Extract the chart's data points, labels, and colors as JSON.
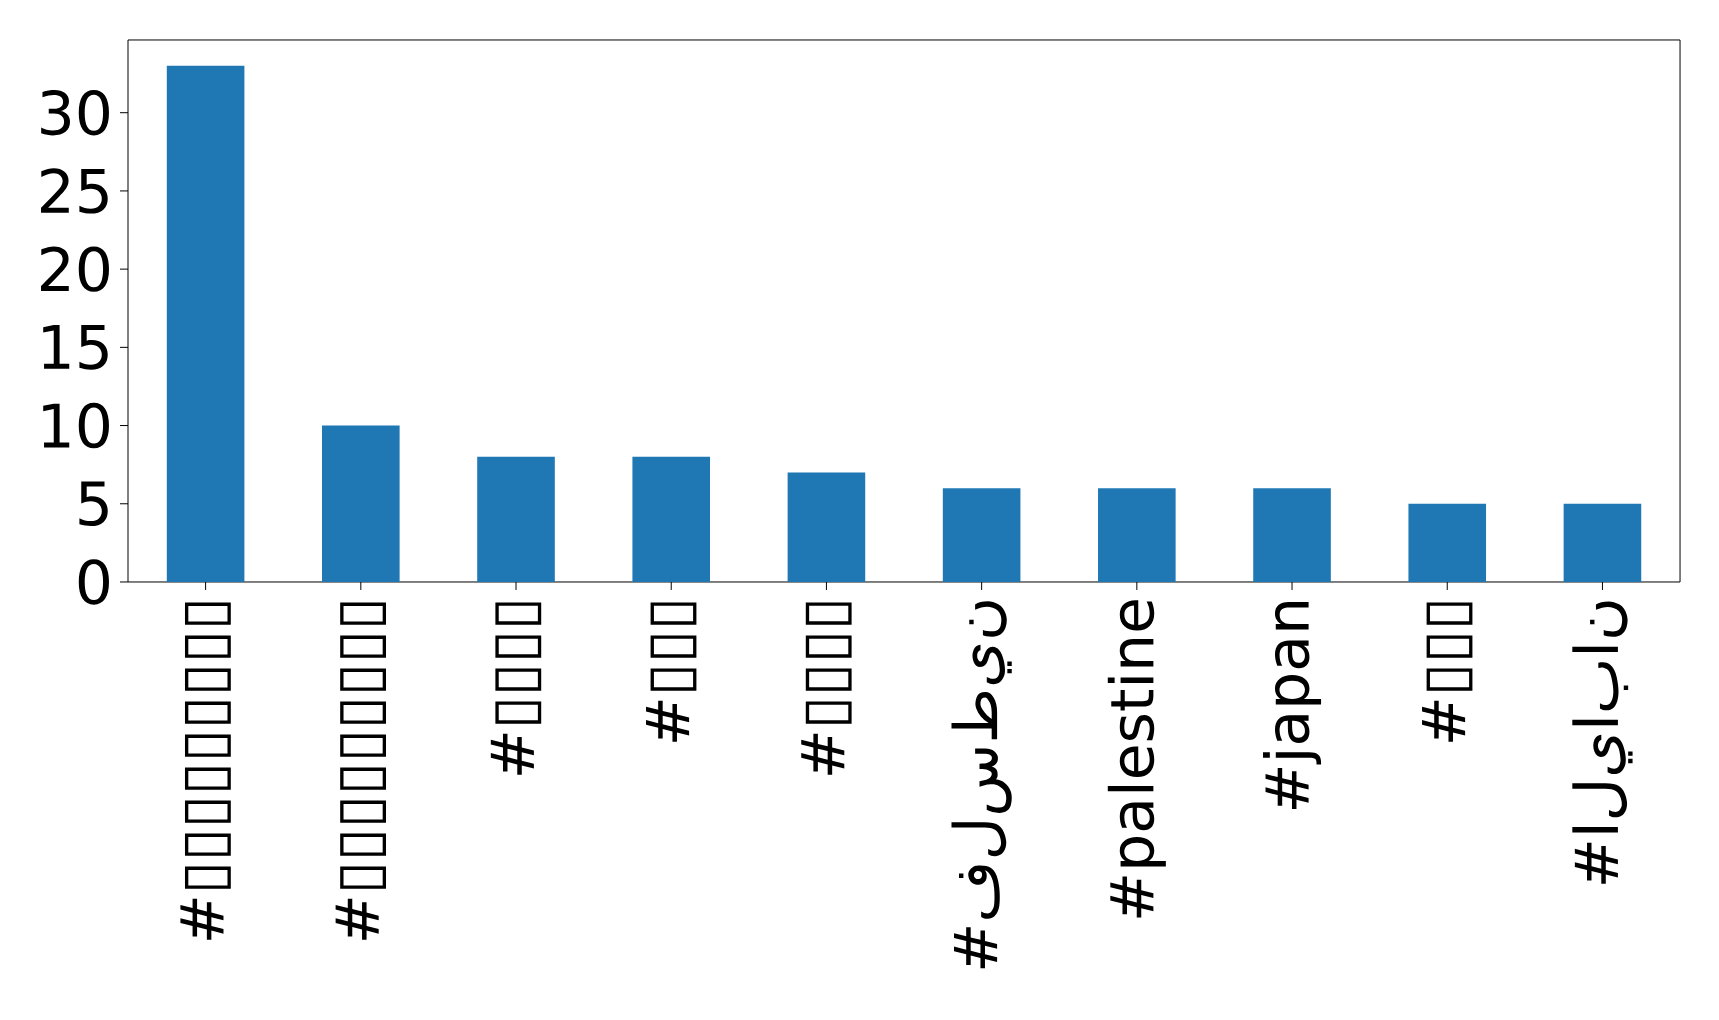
{
  "chart_data": {
    "type": "bar",
    "categories": [
      "#▯▯▯▯▯▯▯▯▯",
      "#▯▯▯▯▯▯▯▯▯",
      "#▯▯▯▯",
      "#▯▯▯",
      "#▯▯▯▯",
      "#فلسطين",
      "#palestine",
      "#japan",
      "#▯▯▯",
      "#اليابان"
    ],
    "values": [
      33,
      10,
      8,
      8,
      7,
      6,
      6,
      6,
      5,
      5
    ],
    "color": "#1f77b4",
    "ylim": [
      0,
      34.65
    ],
    "yticks": [
      0,
      5,
      10,
      15,
      20,
      25,
      30
    ],
    "grid": false
  }
}
